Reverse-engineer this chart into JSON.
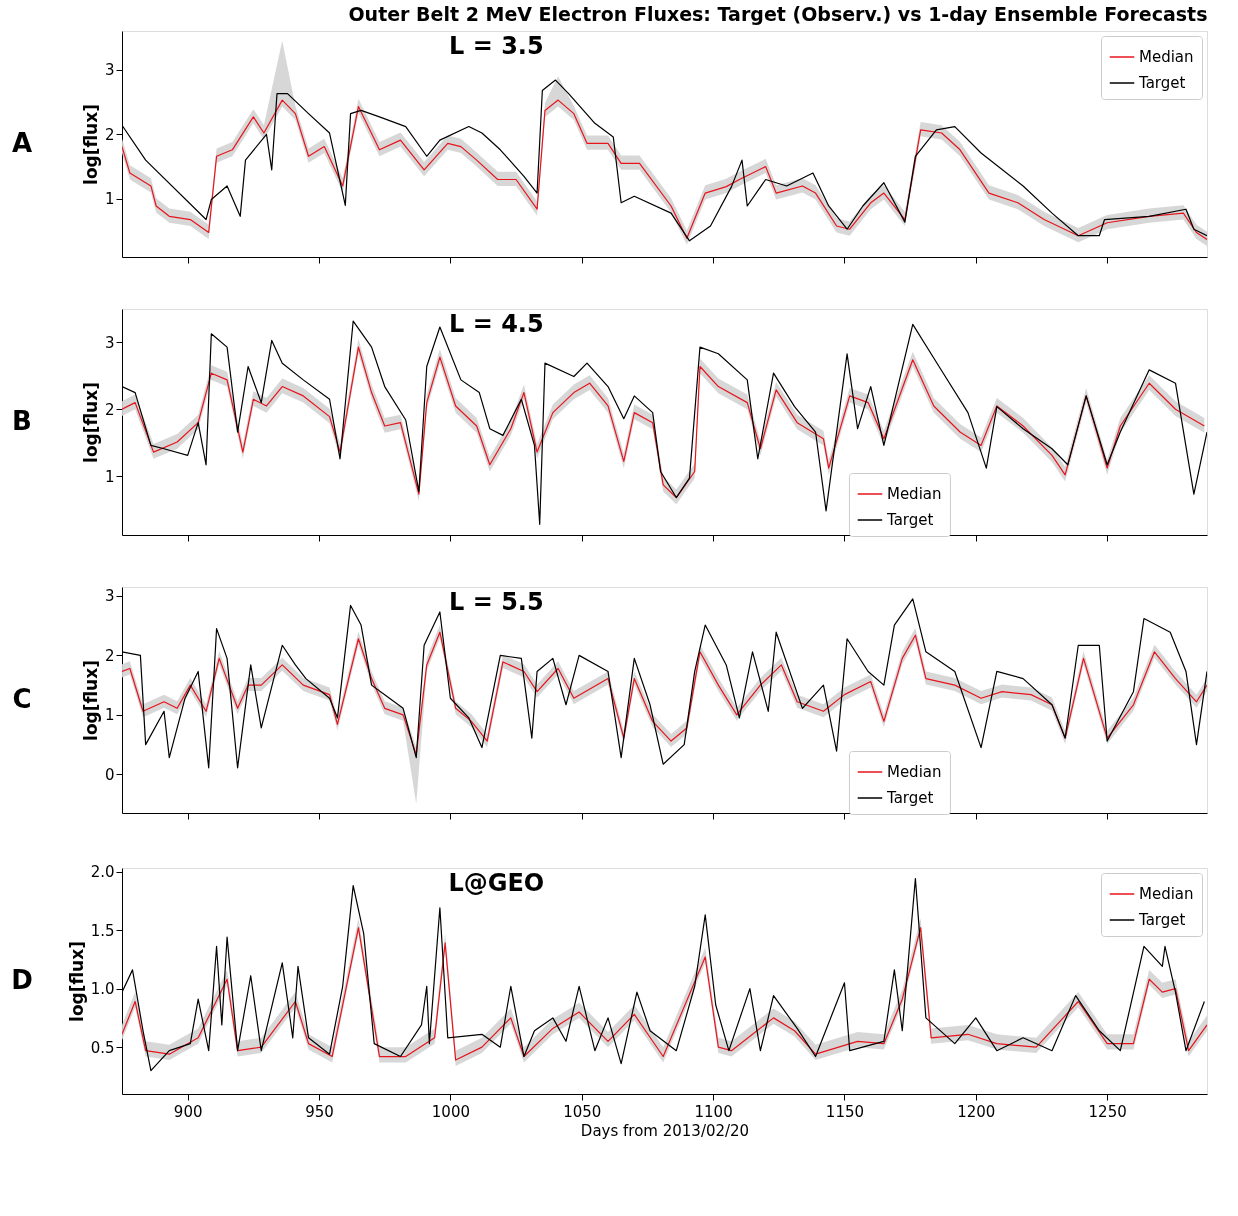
{
  "chart_data": [
    {
      "type": "line",
      "title": "Outer Belt 2 MeV Electron Fluxes: Target (Observ.) vs 1-day Ensemble Forecasts",
      "ylabel": "log[flux]",
      "annotations": [
        "L = 3.5",
        "A"
      ],
      "xlim": [
        875,
        1288
      ],
      "xticks": [
        900,
        950,
        1000,
        1050,
        1100,
        1150,
        1200,
        1250
      ],
      "ylim": [
        0.1,
        3.6
      ],
      "yticks": [
        1,
        2,
        3
      ],
      "tick_labels": "y",
      "legend": "top right",
      "grid": false,
      "series": [
        {
          "name": "Median",
          "color": "#e8141c",
          "x": [
            875,
            878,
            886,
            888,
            893,
            901,
            908,
            911,
            917,
            925,
            929,
            936,
            941,
            946,
            952,
            959,
            965,
            973,
            981,
            990,
            999,
            1004,
            1010,
            1018,
            1025,
            1033,
            1036,
            1041,
            1047,
            1052,
            1060,
            1065,
            1072,
            1084,
            1090,
            1097,
            1105,
            1110,
            1120,
            1124,
            1134,
            1139,
            1147,
            1152,
            1160,
            1165,
            1173,
            1179,
            1187,
            1194,
            1205,
            1216,
            1226,
            1239,
            1250,
            1266,
            1279,
            1284,
            1288
          ],
          "values": [
            1.81,
            1.4,
            1.2,
            0.89,
            0.73,
            0.68,
            0.48,
            1.66,
            1.76,
            2.27,
            2.02,
            2.53,
            2.32,
            1.66,
            1.81,
            1.2,
            2.43,
            1.76,
            1.91,
            1.45,
            1.86,
            1.81,
            1.6,
            1.3,
            1.3,
            0.84,
            2.37,
            2.53,
            2.32,
            1.86,
            1.86,
            1.55,
            1.55,
            0.89,
            0.39,
            1.09,
            1.19,
            1.3,
            1.5,
            1.09,
            1.2,
            1.09,
            0.58,
            0.53,
            0.94,
            1.09,
            0.68,
            2.07,
            2.02,
            1.76,
            1.09,
            0.94,
            0.68,
            0.43,
            0.63,
            0.73,
            0.78,
            0.48,
            0.37
          ],
          "lower": [
            1.71,
            1.3,
            1.1,
            0.79,
            0.63,
            0.58,
            0.38,
            1.56,
            1.66,
            2.17,
            1.92,
            2.43,
            2.22,
            1.56,
            1.71,
            1.1,
            2.33,
            1.66,
            1.81,
            1.35,
            1.76,
            1.71,
            1.5,
            1.2,
            1.2,
            0.74,
            2.27,
            2.43,
            2.22,
            1.76,
            1.76,
            1.45,
            1.45,
            0.79,
            0.29,
            0.99,
            1.09,
            1.2,
            1.4,
            0.99,
            1.1,
            0.99,
            0.48,
            0.43,
            0.84,
            0.99,
            0.58,
            1.97,
            1.92,
            1.66,
            0.99,
            0.84,
            0.58,
            0.33,
            0.53,
            0.63,
            0.68,
            0.38,
            0.27
          ],
          "upper": [
            1.93,
            1.52,
            1.32,
            1.01,
            0.85,
            0.8,
            0.6,
            1.78,
            1.88,
            2.39,
            2.14,
            3.45,
            2.44,
            1.78,
            1.93,
            1.32,
            2.55,
            1.88,
            2.03,
            1.57,
            1.98,
            1.93,
            1.72,
            1.42,
            1.42,
            0.96,
            2.49,
            2.9,
            2.44,
            1.98,
            1.98,
            1.67,
            1.67,
            1.01,
            0.51,
            1.21,
            1.31,
            1.42,
            1.62,
            1.21,
            1.32,
            1.21,
            0.7,
            0.65,
            1.06,
            1.21,
            0.8,
            2.19,
            2.14,
            1.88,
            1.21,
            1.06,
            0.8,
            0.55,
            0.75,
            0.85,
            0.9,
            0.6,
            0.49
          ]
        },
        {
          "name": "Target",
          "color": "#000000",
          "x": [
            875,
            884,
            907,
            909,
            915,
            920,
            922,
            930,
            932,
            934,
            938,
            946,
            954,
            960,
            962,
            966,
            973,
            983,
            991,
            996,
            1007,
            1012,
            1019,
            1028,
            1033,
            1035,
            1040,
            1045,
            1055,
            1062,
            1065,
            1070,
            1084,
            1091,
            1099,
            1107,
            1111,
            1113,
            1120,
            1128,
            1138,
            1144,
            1151,
            1157,
            1165,
            1173,
            1177,
            1185,
            1192,
            1202,
            1218,
            1229,
            1239,
            1247,
            1249,
            1266,
            1280,
            1283,
            1288
          ],
          "values": [
            2.14,
            1.6,
            0.68,
            0.99,
            1.2,
            0.73,
            1.6,
            2.0,
            1.45,
            2.63,
            2.63,
            2.32,
            2.02,
            0.9,
            2.32,
            2.37,
            2.27,
            2.12,
            1.66,
            1.91,
            2.12,
            2.02,
            1.76,
            1.35,
            1.09,
            2.68,
            2.84,
            2.63,
            2.17,
            1.96,
            0.94,
            1.04,
            0.78,
            0.35,
            0.58,
            1.19,
            1.6,
            0.89,
            1.3,
            1.2,
            1.4,
            0.89,
            0.53,
            0.89,
            1.25,
            0.64,
            1.66,
            2.07,
            2.12,
            1.71,
            1.2,
            0.78,
            0.43,
            0.43,
            0.68,
            0.73,
            0.84,
            0.53,
            0.43
          ]
        }
      ]
    },
    {
      "type": "line",
      "ylabel": "log[flux]",
      "annotations": [
        "L = 4.5",
        "B"
      ],
      "xlim": [
        875,
        1288
      ],
      "xticks": [
        900,
        950,
        1000,
        1050,
        1100,
        1150,
        1200,
        1250
      ],
      "ylim": [
        0.12,
        3.5
      ],
      "yticks": [
        1,
        2,
        3
      ],
      "tick_labels": "y",
      "legend": "bottom",
      "grid": false,
      "series": [
        {
          "name": "Median",
          "color": "#e8141c",
          "x": [
            875,
            880,
            887,
            896,
            904,
            909,
            915,
            921,
            925,
            930,
            936,
            944,
            954,
            958,
            965,
            970,
            975,
            981,
            988,
            991,
            996,
            1002,
            1010,
            1015,
            1023,
            1028,
            1033,
            1039,
            1047,
            1053,
            1060,
            1066,
            1070,
            1077,
            1081,
            1086,
            1093,
            1095,
            1102,
            1113,
            1118,
            1124,
            1132,
            1142,
            1144,
            1152,
            1159,
            1165,
            1176,
            1184,
            1194,
            1202,
            1208,
            1218,
            1229,
            1234,
            1242,
            1250,
            1255,
            1266,
            1276,
            1287
          ],
          "values": [
            2.0,
            2.1,
            1.36,
            1.51,
            1.8,
            2.54,
            2.44,
            1.36,
            2.15,
            2.05,
            2.34,
            2.2,
            1.89,
            1.36,
            2.93,
            2.25,
            1.75,
            1.8,
            0.73,
            2.1,
            2.78,
            2.05,
            1.75,
            1.17,
            1.71,
            2.25,
            1.36,
            1.95,
            2.25,
            2.39,
            2.05,
            1.22,
            1.95,
            1.8,
            0.87,
            0.68,
            1.07,
            2.64,
            2.34,
            2.1,
            1.41,
            2.29,
            1.8,
            1.56,
            1.12,
            2.2,
            2.1,
            1.56,
            2.74,
            2.05,
            1.66,
            1.46,
            2.05,
            1.75,
            1.31,
            1.02,
            2.2,
            1.12,
            1.75,
            2.39,
            2.0,
            1.75
          ],
          "lower": [
            1.9,
            2.0,
            1.26,
            1.41,
            1.7,
            2.44,
            2.34,
            1.26,
            2.05,
            1.95,
            2.24,
            2.1,
            1.79,
            1.26,
            2.83,
            2.15,
            1.65,
            1.7,
            0.63,
            2.0,
            2.68,
            1.95,
            1.65,
            1.07,
            1.61,
            2.15,
            1.26,
            1.85,
            2.15,
            2.29,
            1.95,
            1.12,
            1.85,
            1.7,
            0.77,
            0.58,
            0.97,
            2.54,
            2.24,
            2.0,
            1.31,
            2.19,
            1.7,
            1.46,
            1.02,
            2.1,
            2.0,
            1.46,
            2.64,
            1.95,
            1.56,
            1.36,
            1.95,
            1.65,
            1.21,
            0.92,
            2.1,
            1.02,
            1.65,
            2.29,
            1.9,
            1.65
          ],
          "upper": [
            2.12,
            2.22,
            1.48,
            1.63,
            1.92,
            2.66,
            2.56,
            1.48,
            2.27,
            2.17,
            2.46,
            2.32,
            2.01,
            1.48,
            3.05,
            2.37,
            1.87,
            1.92,
            0.85,
            2.22,
            2.9,
            2.17,
            1.87,
            1.29,
            1.83,
            2.37,
            1.48,
            2.07,
            2.37,
            2.51,
            2.17,
            1.34,
            2.07,
            1.92,
            0.99,
            0.8,
            1.19,
            2.76,
            2.46,
            2.22,
            1.53,
            2.41,
            1.92,
            1.68,
            1.24,
            2.32,
            2.22,
            1.68,
            2.86,
            2.17,
            1.78,
            1.58,
            2.17,
            1.87,
            1.43,
            1.14,
            2.32,
            1.24,
            1.87,
            2.51,
            2.12,
            1.87
          ]
        },
        {
          "name": "Target",
          "color": "#000000",
          "x": [
            875,
            880,
            886,
            891,
            900,
            904,
            907,
            909,
            915,
            919,
            923,
            928,
            932,
            936,
            944,
            954,
            958,
            963,
            970,
            975,
            983,
            988,
            991,
            996,
            1004,
            1011,
            1015,
            1020,
            1027,
            1032,
            1034,
            1036,
            1047,
            1052,
            1060,
            1066,
            1070,
            1077,
            1080,
            1086,
            1091,
            1095,
            1102,
            1113,
            1117,
            1123,
            1131,
            1139,
            1143,
            1151,
            1155,
            1160,
            1165,
            1176,
            1186,
            1197,
            1204,
            1208,
            1218,
            1229,
            1235,
            1242,
            1250,
            1255,
            1266,
            1276,
            1283,
            1288
          ],
          "values": [
            2.34,
            2.25,
            1.46,
            1.41,
            1.31,
            1.8,
            1.17,
            3.13,
            2.93,
            1.66,
            2.64,
            2.1,
            3.03,
            2.69,
            2.44,
            2.15,
            1.26,
            3.32,
            2.93,
            2.34,
            1.84,
            0.77,
            2.64,
            3.23,
            2.44,
            2.25,
            1.71,
            1.61,
            2.15,
            1.46,
            0.28,
            2.69,
            2.49,
            2.69,
            2.34,
            1.86,
            2.2,
            1.95,
            1.07,
            0.68,
            0.97,
            2.93,
            2.83,
            2.44,
            1.26,
            2.54,
            2.04,
            1.66,
            0.48,
            2.83,
            1.71,
            2.34,
            1.46,
            3.27,
            2.64,
            1.95,
            1.12,
            2.04,
            1.71,
            1.41,
            1.17,
            2.2,
            1.17,
            1.66,
            2.59,
            2.39,
            0.73,
            1.66
          ]
        }
      ]
    },
    {
      "type": "line",
      "ylabel": "log[flux]",
      "annotations": [
        "L = 5.5",
        "C"
      ],
      "xlim": [
        875,
        1288
      ],
      "xticks": [
        900,
        950,
        1000,
        1050,
        1100,
        1150,
        1200,
        1250
      ],
      "ylim": [
        -0.65,
        3.15
      ],
      "yticks": [
        0,
        1,
        2,
        3
      ],
      "tick_labels": "y",
      "legend": "bottom",
      "grid": false,
      "series": [
        {
          "name": "Median",
          "color": "#e8141c",
          "x": [
            875,
            878,
            883,
            891,
            896,
            901,
            907,
            912,
            919,
            923,
            928,
            936,
            944,
            954,
            957,
            965,
            970,
            975,
            982,
            987,
            991,
            996,
            1002,
            1008,
            1014,
            1020,
            1028,
            1033,
            1041,
            1047,
            1060,
            1066,
            1070,
            1077,
            1084,
            1090,
            1095,
            1102,
            1109,
            1118,
            1126,
            1132,
            1142,
            1150,
            1160,
            1165,
            1172,
            1177,
            1181,
            1192,
            1202,
            1210,
            1221,
            1229,
            1234,
            1241,
            1250,
            1260,
            1268,
            1276,
            1284,
            1288
          ],
          "values": [
            1.73,
            1.78,
            1.06,
            1.22,
            1.11,
            1.5,
            1.06,
            1.95,
            1.11,
            1.5,
            1.5,
            1.84,
            1.5,
            1.34,
            0.84,
            2.28,
            1.61,
            1.11,
            1.0,
            0.33,
            1.84,
            2.39,
            1.11,
            0.89,
            0.56,
            1.89,
            1.73,
            1.39,
            1.78,
            1.28,
            1.61,
            0.61,
            1.61,
            0.89,
            0.56,
            0.78,
            2.06,
            1.5,
            1.0,
            1.5,
            1.84,
            1.22,
            1.06,
            1.34,
            1.56,
            0.89,
            1.95,
            2.34,
            1.61,
            1.5,
            1.28,
            1.39,
            1.34,
            1.17,
            0.61,
            1.95,
            0.61,
            1.17,
            2.06,
            1.61,
            1.22,
            1.5
          ],
          "lower": [
            1.63,
            1.68,
            0.96,
            1.12,
            1.01,
            1.4,
            0.96,
            1.85,
            1.01,
            1.4,
            1.4,
            1.74,
            1.4,
            1.24,
            0.74,
            2.18,
            1.51,
            1.01,
            0.9,
            -0.5,
            1.74,
            2.29,
            1.01,
            0.79,
            0.46,
            1.79,
            1.63,
            1.29,
            1.68,
            1.18,
            1.51,
            0.51,
            1.51,
            0.79,
            0.46,
            0.68,
            1.96,
            1.4,
            0.9,
            1.4,
            1.74,
            1.12,
            0.96,
            1.24,
            1.46,
            0.79,
            1.85,
            2.24,
            1.51,
            1.4,
            1.18,
            1.29,
            1.24,
            1.07,
            0.51,
            1.85,
            0.51,
            1.07,
            1.96,
            1.51,
            1.12,
            1.4
          ],
          "upper": [
            1.85,
            1.9,
            1.18,
            1.34,
            1.23,
            1.62,
            1.18,
            2.07,
            1.23,
            1.62,
            1.62,
            1.96,
            1.62,
            1.46,
            0.96,
            2.4,
            1.73,
            1.23,
            1.12,
            0.45,
            1.96,
            2.51,
            1.23,
            1.01,
            0.68,
            2.01,
            1.85,
            1.51,
            1.9,
            1.4,
            1.73,
            0.73,
            1.73,
            1.01,
            0.68,
            0.9,
            2.18,
            1.62,
            1.12,
            1.62,
            1.96,
            1.34,
            1.18,
            1.46,
            1.68,
            1.01,
            2.07,
            2.46,
            1.73,
            1.62,
            1.4,
            1.51,
            1.46,
            1.29,
            0.73,
            2.07,
            0.73,
            1.29,
            2.18,
            1.73,
            1.34,
            1.62
          ]
        },
        {
          "name": "Target",
          "color": "#000000",
          "x": [
            875,
            882,
            884,
            891,
            893,
            899,
            904,
            908,
            911,
            915,
            919,
            924,
            928,
            936,
            941,
            945,
            954,
            957,
            962,
            966,
            970,
            975,
            982,
            987,
            990,
            996,
            1000,
            1007,
            1012,
            1019,
            1027,
            1031,
            1033,
            1039,
            1044,
            1049,
            1060,
            1065,
            1070,
            1076,
            1081,
            1089,
            1093,
            1097,
            1105,
            1110,
            1115,
            1121,
            1124,
            1134,
            1142,
            1147,
            1151,
            1159,
            1165,
            1169,
            1176,
            1181,
            1192,
            1202,
            1208,
            1218,
            1229,
            1234,
            1239,
            1247,
            1250,
            1260,
            1264,
            1274,
            1280,
            1284,
            1288
          ],
          "values": [
            2.06,
            2.0,
            0.5,
            1.06,
            0.28,
            1.28,
            1.73,
            0.11,
            2.45,
            1.95,
            0.11,
            1.84,
            0.78,
            2.17,
            1.84,
            1.61,
            1.28,
            0.95,
            2.84,
            2.51,
            1.5,
            1.34,
            1.11,
            0.28,
            2.17,
            2.73,
            1.28,
            0.95,
            0.45,
            2.0,
            1.95,
            0.61,
            1.73,
            1.95,
            1.17,
            2.0,
            1.73,
            0.28,
            1.95,
            1.17,
            0.17,
            0.5,
            1.73,
            2.51,
            1.84,
            0.95,
            2.06,
            1.06,
            2.39,
            1.11,
            1.5,
            0.39,
            2.28,
            1.73,
            1.5,
            2.51,
            2.95,
            2.06,
            1.73,
            0.45,
            1.73,
            1.61,
            1.17,
            0.61,
            2.17,
            2.17,
            0.56,
            1.39,
            2.62,
            2.39,
            1.73,
            0.5,
            1.73
          ]
        }
      ]
    },
    {
      "type": "line",
      "ylabel": "log[flux]",
      "xlabel": "Days from 2013/02/20",
      "annotations": [
        "L@GEO",
        "D"
      ],
      "xlim": [
        875,
        1288
      ],
      "xticks": [
        900,
        950,
        1000,
        1050,
        1100,
        1150,
        1200,
        1250
      ],
      "ylim": [
        0.1,
        2.03
      ],
      "yticks": [
        {
          "value": 0.5,
          "label": "0.5"
        },
        {
          "value": 1,
          "label": "1.0"
        },
        {
          "value": 1.5,
          "label": "1.5"
        },
        {
          "value": 2,
          "label": "2.0"
        }
      ],
      "legend": "top right",
      "grid": false,
      "series": [
        {
          "name": "Median",
          "color": "#e8141c",
          "x": [
            875,
            880,
            884,
            893,
            904,
            915,
            919,
            928,
            941,
            946,
            955,
            965,
            973,
            983,
            994,
            998,
            1002,
            1012,
            1023,
            1028,
            1039,
            1049,
            1060,
            1070,
            1081,
            1097,
            1102,
            1107,
            1123,
            1131,
            1139,
            1155,
            1165,
            1172,
            1179,
            1183,
            1197,
            1208,
            1223,
            1239,
            1250,
            1260,
            1266,
            1271,
            1276,
            1281,
            1288
          ],
          "values": [
            0.61,
            0.89,
            0.47,
            0.44,
            0.58,
            1.08,
            0.47,
            0.5,
            0.89,
            0.53,
            0.42,
            1.52,
            0.42,
            0.42,
            0.58,
            1.39,
            0.39,
            0.5,
            0.75,
            0.42,
            0.66,
            0.8,
            0.55,
            0.78,
            0.42,
            1.27,
            0.5,
            0.47,
            0.75,
            0.64,
            0.44,
            0.55,
            0.53,
            0.91,
            1.52,
            0.58,
            0.61,
            0.53,
            0.5,
            0.89,
            0.53,
            0.53,
            1.08,
            0.97,
            1.0,
            0.47,
            0.69
          ],
          "lower": [
            0.56,
            0.84,
            0.42,
            0.39,
            0.53,
            1.03,
            0.42,
            0.45,
            0.84,
            0.48,
            0.37,
            1.47,
            0.37,
            0.37,
            0.53,
            1.34,
            0.34,
            0.45,
            0.7,
            0.37,
            0.61,
            0.75,
            0.5,
            0.73,
            0.37,
            1.22,
            0.45,
            0.42,
            0.7,
            0.59,
            0.39,
            0.5,
            0.48,
            0.86,
            1.47,
            0.53,
            0.56,
            0.48,
            0.45,
            0.84,
            0.48,
            0.48,
            1.03,
            0.92,
            0.95,
            0.42,
            0.64
          ],
          "upper": [
            0.69,
            0.97,
            0.55,
            0.52,
            0.66,
            1.16,
            0.55,
            0.58,
            0.97,
            0.61,
            0.5,
            1.6,
            0.5,
            0.5,
            0.66,
            1.47,
            0.47,
            0.58,
            0.83,
            0.5,
            0.74,
            0.88,
            0.63,
            0.86,
            0.5,
            1.35,
            0.58,
            0.55,
            0.83,
            0.72,
            0.52,
            0.63,
            0.61,
            0.99,
            1.6,
            0.66,
            0.69,
            0.61,
            0.58,
            0.97,
            0.61,
            0.61,
            1.16,
            1.05,
            1.08,
            0.55,
            0.77
          ]
        },
        {
          "name": "Target",
          "color": "#000000",
          "x": [
            875,
            879,
            883,
            886,
            893,
            901,
            904,
            908,
            911,
            913,
            915,
            919,
            924,
            928,
            936,
            940,
            942,
            946,
            954,
            959,
            963,
            967,
            971,
            981,
            989,
            991,
            992,
            996,
            999,
            1012,
            1019,
            1023,
            1028,
            1032,
            1039,
            1044,
            1049,
            1055,
            1060,
            1065,
            1071,
            1076,
            1086,
            1093,
            1097,
            1101,
            1106,
            1114,
            1118,
            1123,
            1132,
            1139,
            1150,
            1152,
            1165,
            1169,
            1172,
            1177,
            1181,
            1192,
            1200,
            1208,
            1218,
            1229,
            1238,
            1247,
            1255,
            1264,
            1271,
            1272,
            1276,
            1280,
            1287
          ],
          "values": [
            0.97,
            1.16,
            0.64,
            0.3,
            0.47,
            0.53,
            0.91,
            0.47,
            1.36,
            0.69,
            1.44,
            0.47,
            1.11,
            0.47,
            1.22,
            0.58,
            1.19,
            0.58,
            0.44,
            1.02,
            1.88,
            1.47,
            0.53,
            0.42,
            0.69,
            1.02,
            0.53,
            1.69,
            0.58,
            0.61,
            0.5,
            1.02,
            0.42,
            0.64,
            0.75,
            0.55,
            1.02,
            0.47,
            0.75,
            0.36,
            0.97,
            0.64,
            0.47,
            1.02,
            1.63,
            0.86,
            0.47,
            1.0,
            0.47,
            0.94,
            0.66,
            0.42,
            1.05,
            0.47,
            0.55,
            1.16,
            0.64,
            1.94,
            0.75,
            0.53,
            0.75,
            0.47,
            0.58,
            0.47,
            0.94,
            0.64,
            0.47,
            1.36,
            1.19,
            1.36,
            0.97,
            0.47,
            0.89
          ]
        }
      ]
    }
  ]
}
